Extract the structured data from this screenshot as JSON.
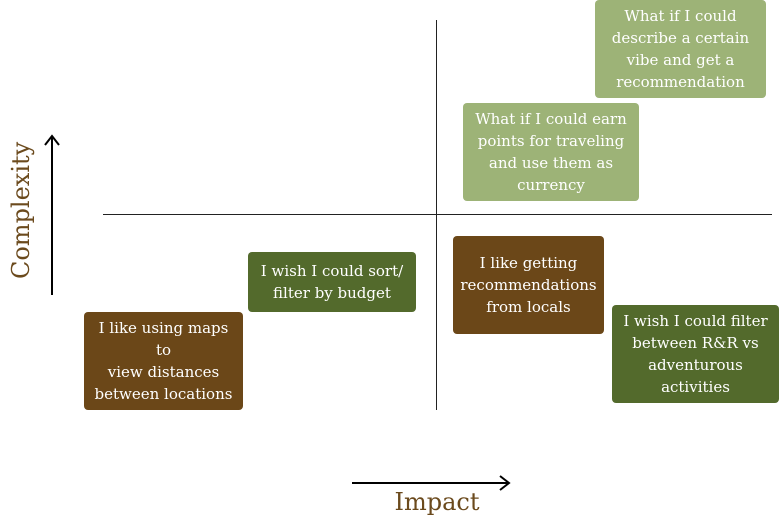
{
  "colors": {
    "light_green": "#9db377",
    "dark_green": "#536a2c",
    "brown": "#6b4718",
    "label_brown": "#6b4a1d",
    "axis": "#222222"
  },
  "axes": {
    "x_label": "Impact",
    "y_label": "Complexity"
  },
  "notes": [
    {
      "id": "vibe",
      "text": "What if I could\ndescribe a certain\nvibe and get a\nrecommendation",
      "color": "light_green"
    },
    {
      "id": "points",
      "text": "What if I could earn\npoints for traveling\nand use them as\ncurrency",
      "color": "light_green"
    },
    {
      "id": "sort",
      "text": "I wish I could sort/\nfilter by budget",
      "color": "dark_green"
    },
    {
      "id": "locals",
      "text": "I like getting\nrecommendations\nfrom locals",
      "color": "brown"
    },
    {
      "id": "maps",
      "text": "I like using maps to\nview distances\nbetween locations",
      "color": "brown"
    },
    {
      "id": "rr",
      "text": "I wish I could filter\nbetween R&R vs\nadventurous\nactivities",
      "color": "dark_green"
    }
  ]
}
